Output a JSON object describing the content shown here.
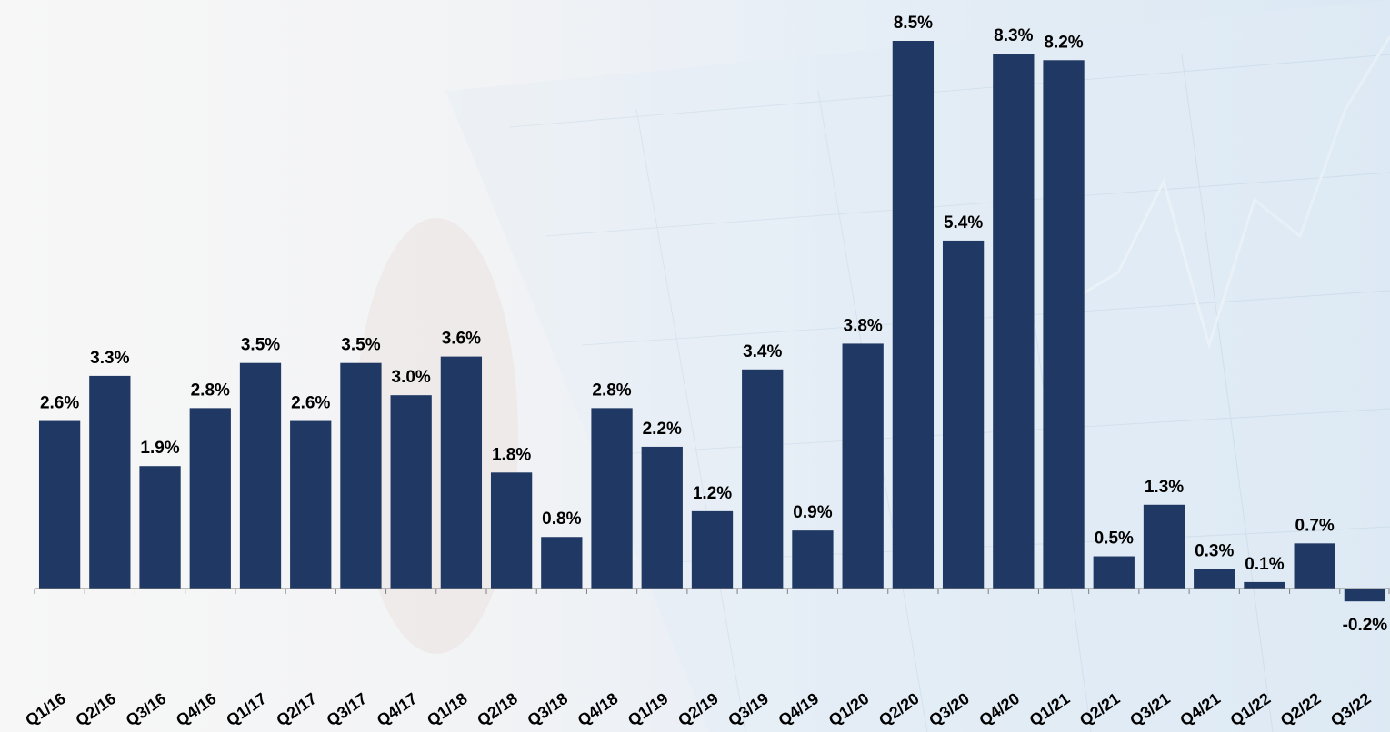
{
  "chart_data": {
    "type": "bar",
    "categories": [
      "Q1/16",
      "Q2/16",
      "Q3/16",
      "Q4/16",
      "Q1/17",
      "Q2/17",
      "Q3/17",
      "Q4/17",
      "Q1/18",
      "Q2/18",
      "Q3/18",
      "Q4/18",
      "Q1/19",
      "Q2/19",
      "Q3/19",
      "Q4/19",
      "Q1/20",
      "Q2/20",
      "Q3/20",
      "Q4/20",
      "Q1/21",
      "Q2/21",
      "Q3/21",
      "Q4/21",
      "Q1/22",
      "Q2/22",
      "Q3/22"
    ],
    "values": [
      2.6,
      3.3,
      1.9,
      2.8,
      3.5,
      2.6,
      3.5,
      3.0,
      3.6,
      1.8,
      0.8,
      2.8,
      2.2,
      1.2,
      3.4,
      0.9,
      3.8,
      8.5,
      5.4,
      8.3,
      8.2,
      0.5,
      1.3,
      0.3,
      0.1,
      0.7,
      -0.2
    ],
    "value_labels": [
      "2.6%",
      "3.3%",
      "1.9%",
      "2.8%",
      "3.5%",
      "2.6%",
      "3.5%",
      "3.0%",
      "3.6%",
      "1.8%",
      "0.8%",
      "2.8%",
      "2.2%",
      "1.2%",
      "3.4%",
      "0.9%",
      "3.8%",
      "8.5%",
      "5.4%",
      "8.3%",
      "8.2%",
      "0.5%",
      "1.3%",
      "0.3%",
      "0.1%",
      "0.7%",
      "-0.2%"
    ],
    "color": "#203864"
  }
}
